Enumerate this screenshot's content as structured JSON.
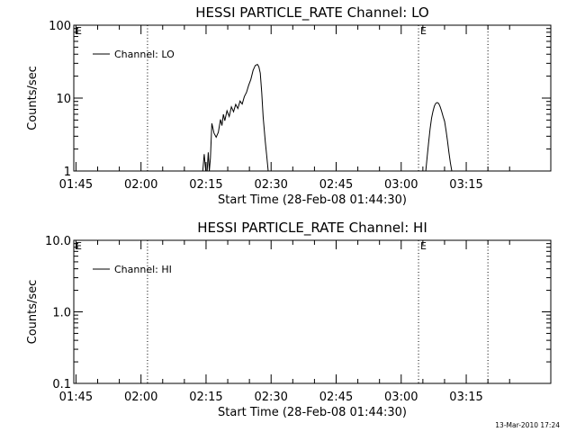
{
  "footer": {
    "timestamp": "13-Mar-2010 17:24"
  },
  "chart_data": [
    {
      "type": "line",
      "title": "HESSI PARTICLE_RATE Channel: LO",
      "xlabel": "Start Time (28-Feb-08 01:44:30)",
      "ylabel": "Counts/sec",
      "yscale": "log",
      "ylim": [
        1,
        100
      ],
      "xlim_minutes_after_01_44_30": [
        0,
        110
      ],
      "xticks": [
        "01:45",
        "02:00",
        "02:15",
        "02:30",
        "02:45",
        "03:00",
        "03:15"
      ],
      "yticks": [
        "1",
        "10",
        "100"
      ],
      "markers": [
        {
          "label": "E",
          "time": "01:44:30"
        },
        {
          "label": "",
          "time": "02:01:30"
        },
        {
          "label": "E",
          "time": "03:04:00"
        },
        {
          "label": "",
          "time": "03:20:00"
        }
      ],
      "legend": {
        "position": "top-left",
        "entries": [
          "Channel: LO"
        ]
      },
      "series": [
        {
          "name": "Channel: LO",
          "segments": [
            [
              [
                "02:14:15",
                1.0
              ],
              [
                "02:14:35",
                1.7
              ],
              [
                "02:14:55",
                1.0
              ],
              [
                "02:15:15",
                1.0
              ],
              [
                "02:15:30",
                1.8
              ],
              [
                "02:15:45",
                1.0
              ],
              [
                "02:16:00",
                1.5
              ],
              [
                "02:16:10",
                2.6
              ],
              [
                "02:16:20",
                4.5
              ],
              [
                "02:16:50",
                3.3
              ],
              [
                "02:17:20",
                2.9
              ],
              [
                "02:17:50",
                3.4
              ],
              [
                "02:18:20",
                5.1
              ],
              [
                "02:18:40",
                4.2
              ],
              [
                "02:19:00",
                6.0
              ],
              [
                "02:19:20",
                4.9
              ],
              [
                "02:19:50",
                6.7
              ],
              [
                "02:20:20",
                5.6
              ],
              [
                "02:20:50",
                7.6
              ],
              [
                "02:21:20",
                6.5
              ],
              [
                "02:21:50",
                8.2
              ],
              [
                "02:22:20",
                7.2
              ],
              [
                "02:22:50",
                9.1
              ],
              [
                "02:23:20",
                8.3
              ],
              [
                "02:23:50",
                10.5
              ],
              [
                "02:24:20",
                12.0
              ],
              [
                "02:24:50",
                15.0
              ],
              [
                "02:25:20",
                18.0
              ],
              [
                "02:25:50",
                24.0
              ],
              [
                "02:26:20",
                28.0
              ],
              [
                "02:26:50",
                29.0
              ],
              [
                "02:27:10",
                27.0
              ],
              [
                "02:27:30",
                22.0
              ],
              [
                "02:27:50",
                12.0
              ],
              [
                "02:28:10",
                5.5
              ],
              [
                "02:28:40",
                2.5
              ],
              [
                "02:29:00",
                1.6
              ],
              [
                "02:29:20",
                1.0
              ]
            ],
            [
              [
                "03:05:40",
                1.0
              ],
              [
                "03:06:00",
                1.6
              ],
              [
                "03:06:20",
                2.5
              ],
              [
                "03:06:40",
                3.8
              ],
              [
                "03:07:00",
                5.3
              ],
              [
                "03:07:20",
                6.6
              ],
              [
                "03:07:40",
                7.8
              ],
              [
                "03:08:00",
                8.5
              ],
              [
                "03:08:20",
                8.7
              ],
              [
                "03:08:40",
                8.4
              ],
              [
                "03:09:00",
                7.6
              ],
              [
                "03:09:20",
                6.6
              ],
              [
                "03:09:40",
                5.6
              ],
              [
                "03:10:00",
                4.8
              ],
              [
                "03:10:20",
                3.6
              ],
              [
                "03:10:40",
                2.6
              ],
              [
                "03:11:00",
                1.8
              ],
              [
                "03:11:20",
                1.3
              ],
              [
                "03:11:40",
                1.0
              ]
            ]
          ]
        }
      ]
    },
    {
      "type": "line",
      "title": "HESSI PARTICLE_RATE Channel: HI",
      "xlabel": "Start Time (28-Feb-08 01:44:30)",
      "ylabel": "Counts/sec",
      "yscale": "log",
      "ylim": [
        0.1,
        10
      ],
      "xlim_minutes_after_01_44_30": [
        0,
        110
      ],
      "xticks": [
        "01:45",
        "02:00",
        "02:15",
        "02:30",
        "02:45",
        "03:00",
        "03:15"
      ],
      "yticks": [
        "0.1",
        "1.0",
        "10.0"
      ],
      "markers": [
        {
          "label": "E",
          "time": "01:44:30"
        },
        {
          "label": "",
          "time": "02:01:30"
        },
        {
          "label": "E",
          "time": "03:04:00"
        },
        {
          "label": "",
          "time": "03:20:00"
        }
      ],
      "legend": {
        "position": "top-left",
        "entries": [
          "Channel: HI"
        ]
      },
      "series": [
        {
          "name": "Channel: HI",
          "segments": []
        }
      ]
    }
  ]
}
